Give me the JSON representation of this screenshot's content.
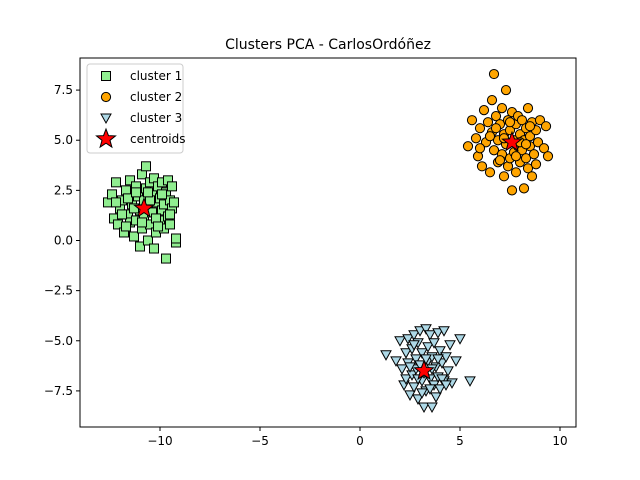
{
  "chart_data": {
    "type": "scatter",
    "title": "Clusters PCA - CarlosOrdóñez",
    "xlabel": "",
    "ylabel": "",
    "xlim": [
      -14,
      10.8
    ],
    "ylim": [
      -9.3,
      9.1
    ],
    "xticks": [
      -10,
      -5,
      0,
      5,
      10
    ],
    "yticks": [
      -7.5,
      -5.0,
      -2.5,
      0.0,
      2.5,
      5.0,
      7.5
    ],
    "xtick_labels": [
      "−10",
      "−5",
      "0",
      "5",
      "10"
    ],
    "ytick_labels": [
      "−7.5",
      "−5.0",
      "−2.5",
      "0.0",
      "2.5",
      "5.0",
      "7.5"
    ],
    "grid": false,
    "legend_position": "top-left",
    "series": [
      {
        "name": "cluster 1",
        "marker": "square",
        "color": "#90EE90",
        "points": [
          [
            -12.6,
            1.9
          ],
          [
            -12.4,
            2.3
          ],
          [
            -12.2,
            2.9
          ],
          [
            -12.3,
            1.1
          ],
          [
            -12.1,
            0.8
          ],
          [
            -12.0,
            1.6
          ],
          [
            -11.9,
            2.0
          ],
          [
            -11.8,
            0.4
          ],
          [
            -11.7,
            2.5
          ],
          [
            -11.6,
            1.3
          ],
          [
            -11.5,
            0.9
          ],
          [
            -11.5,
            3.0
          ],
          [
            -11.4,
            1.8
          ],
          [
            -11.3,
            0.2
          ],
          [
            -11.2,
            2.7
          ],
          [
            -11.2,
            1.0
          ],
          [
            -11.1,
            2.2
          ],
          [
            -11.0,
            -0.3
          ],
          [
            -11.0,
            1.5
          ],
          [
            -10.9,
            3.3
          ],
          [
            -10.9,
            0.6
          ],
          [
            -10.8,
            2.0
          ],
          [
            -10.8,
            1.2
          ],
          [
            -10.7,
            3.7
          ],
          [
            -10.7,
            2.6
          ],
          [
            -10.6,
            0.0
          ],
          [
            -10.6,
            1.7
          ],
          [
            -10.5,
            2.9
          ],
          [
            -10.5,
            0.8
          ],
          [
            -10.4,
            2.3
          ],
          [
            -10.4,
            1.4
          ],
          [
            -10.3,
            -0.4
          ],
          [
            -10.3,
            3.1
          ],
          [
            -10.2,
            0.4
          ],
          [
            -10.2,
            1.9
          ],
          [
            -10.1,
            2.7
          ],
          [
            -10.0,
            1.0
          ],
          [
            -10.0,
            2.1
          ],
          [
            -9.9,
            1.5
          ],
          [
            -9.9,
            2.9
          ],
          [
            -9.8,
            0.6
          ],
          [
            -9.8,
            1.8
          ],
          [
            -9.7,
            -0.9
          ],
          [
            -9.7,
            2.4
          ],
          [
            -9.6,
            1.2
          ],
          [
            -9.6,
            3.0
          ],
          [
            -9.5,
            0.8
          ],
          [
            -9.5,
            2.0
          ],
          [
            -9.4,
            1.6
          ],
          [
            -9.4,
            2.7
          ],
          [
            -9.3,
            1.9
          ],
          [
            -9.2,
            -0.1
          ],
          [
            -9.2,
            0.1
          ],
          [
            -11.9,
            1.3
          ],
          [
            -11.6,
            2.1
          ],
          [
            -11.3,
            1.6
          ],
          [
            -10.9,
            0.9
          ],
          [
            -10.5,
            2.0
          ],
          [
            -10.2,
            1.1
          ],
          [
            -9.9,
            2.3
          ],
          [
            -11.2,
            2.4
          ],
          [
            -10.6,
            2.4
          ],
          [
            -10.1,
            0.7
          ],
          [
            -11.7,
            0.7
          ],
          [
            -12.2,
            1.9
          ],
          [
            -9.5,
            1.3
          ]
        ]
      },
      {
        "name": "cluster 2",
        "marker": "circle",
        "color": "#FFA500",
        "points": [
          [
            5.4,
            4.7
          ],
          [
            5.6,
            6.0
          ],
          [
            5.8,
            5.1
          ],
          [
            5.9,
            4.2
          ],
          [
            6.0,
            5.6
          ],
          [
            6.1,
            3.7
          ],
          [
            6.2,
            6.5
          ],
          [
            6.3,
            4.9
          ],
          [
            6.4,
            5.9
          ],
          [
            6.5,
            3.4
          ],
          [
            6.6,
            5.4
          ],
          [
            6.6,
            7.0
          ],
          [
            6.7,
            8.3
          ],
          [
            6.7,
            4.5
          ],
          [
            6.8,
            6.2
          ],
          [
            6.9,
            3.9
          ],
          [
            6.9,
            5.0
          ],
          [
            7.0,
            5.8
          ],
          [
            7.1,
            4.3
          ],
          [
            7.1,
            6.6
          ],
          [
            7.2,
            3.2
          ],
          [
            7.2,
            5.3
          ],
          [
            7.3,
            7.5
          ],
          [
            7.3,
            4.8
          ],
          [
            7.4,
            6.0
          ],
          [
            7.4,
            3.7
          ],
          [
            7.5,
            5.5
          ],
          [
            7.5,
            4.1
          ],
          [
            7.6,
            6.4
          ],
          [
            7.6,
            2.5
          ],
          [
            7.7,
            5.0
          ],
          [
            7.7,
            4.4
          ],
          [
            7.8,
            5.8
          ],
          [
            7.8,
            3.4
          ],
          [
            7.9,
            6.2
          ],
          [
            7.9,
            4.7
          ],
          [
            8.0,
            5.3
          ],
          [
            8.0,
            3.9
          ],
          [
            8.1,
            6.0
          ],
          [
            8.1,
            4.5
          ],
          [
            8.2,
            5.0
          ],
          [
            8.2,
            2.6
          ],
          [
            8.3,
            5.6
          ],
          [
            8.3,
            4.1
          ],
          [
            8.4,
            6.6
          ],
          [
            8.4,
            3.6
          ],
          [
            8.5,
            5.2
          ],
          [
            8.5,
            4.7
          ],
          [
            8.6,
            5.9
          ],
          [
            8.6,
            3.2
          ],
          [
            8.7,
            4.3
          ],
          [
            8.8,
            5.5
          ],
          [
            8.8,
            3.8
          ],
          [
            8.9,
            4.9
          ],
          [
            9.0,
            6.0
          ],
          [
            9.2,
            4.6
          ],
          [
            9.3,
            5.7
          ],
          [
            9.4,
            4.2
          ],
          [
            6.0,
            4.6
          ],
          [
            6.5,
            5.2
          ],
          [
            7.0,
            4.0
          ],
          [
            7.5,
            5.9
          ],
          [
            8.0,
            4.9
          ],
          [
            8.5,
            5.7
          ],
          [
            7.2,
            5.1
          ],
          [
            7.8,
            4.2
          ],
          [
            6.8,
            5.6
          ],
          [
            8.3,
            4.8
          ]
        ]
      },
      {
        "name": "cluster 3",
        "marker": "triangle-down",
        "color": "#ADD8E6",
        "points": [
          [
            1.3,
            -5.7
          ],
          [
            1.8,
            -6.0
          ],
          [
            2.0,
            -5.0
          ],
          [
            2.1,
            -6.4
          ],
          [
            2.2,
            -7.2
          ],
          [
            2.3,
            -5.6
          ],
          [
            2.3,
            -6.9
          ],
          [
            2.4,
            -4.9
          ],
          [
            2.4,
            -6.1
          ],
          [
            2.5,
            -7.7
          ],
          [
            2.6,
            -5.4
          ],
          [
            2.6,
            -6.7
          ],
          [
            2.7,
            -4.7
          ],
          [
            2.7,
            -7.3
          ],
          [
            2.8,
            -5.9
          ],
          [
            2.8,
            -6.4
          ],
          [
            2.9,
            -5.1
          ],
          [
            2.9,
            -7.9
          ],
          [
            3.0,
            -6.2
          ],
          [
            3.0,
            -4.5
          ],
          [
            3.1,
            -7.0
          ],
          [
            3.1,
            -5.6
          ],
          [
            3.2,
            -6.6
          ],
          [
            3.2,
            -8.3
          ],
          [
            3.3,
            -4.4
          ],
          [
            3.3,
            -7.5
          ],
          [
            3.4,
            -5.3
          ],
          [
            3.4,
            -6.0
          ],
          [
            3.5,
            -4.7
          ],
          [
            3.5,
            -6.9
          ],
          [
            3.6,
            -8.3
          ],
          [
            3.6,
            -5.8
          ],
          [
            3.7,
            -7.2
          ],
          [
            3.7,
            -5.1
          ],
          [
            3.8,
            -6.3
          ],
          [
            3.8,
            -7.8
          ],
          [
            3.9,
            -4.6
          ],
          [
            3.9,
            -6.8
          ],
          [
            4.0,
            -5.5
          ],
          [
            4.0,
            -7.4
          ],
          [
            4.1,
            -6.1
          ],
          [
            4.2,
            -4.5
          ],
          [
            4.2,
            -7.0
          ],
          [
            4.3,
            -5.8
          ],
          [
            4.4,
            -6.5
          ],
          [
            4.5,
            -5.2
          ],
          [
            4.6,
            -7.1
          ],
          [
            4.8,
            -6.0
          ],
          [
            5.0,
            -4.9
          ],
          [
            5.5,
            -7.0
          ],
          [
            2.5,
            -6.3
          ],
          [
            2.9,
            -6.9
          ],
          [
            3.3,
            -5.9
          ],
          [
            3.6,
            -6.4
          ],
          [
            3.9,
            -5.9
          ],
          [
            4.1,
            -6.9
          ],
          [
            2.7,
            -5.2
          ],
          [
            3.1,
            -7.6
          ],
          [
            3.5,
            -7.4
          ],
          [
            4.3,
            -7.2
          ]
        ]
      }
    ],
    "centroids": {
      "name": "centroids",
      "marker": "star",
      "color": "#FF0000",
      "points": [
        [
          -10.8,
          1.6
        ],
        [
          7.6,
          4.9
        ],
        [
          3.2,
          -6.5
        ]
      ]
    }
  }
}
